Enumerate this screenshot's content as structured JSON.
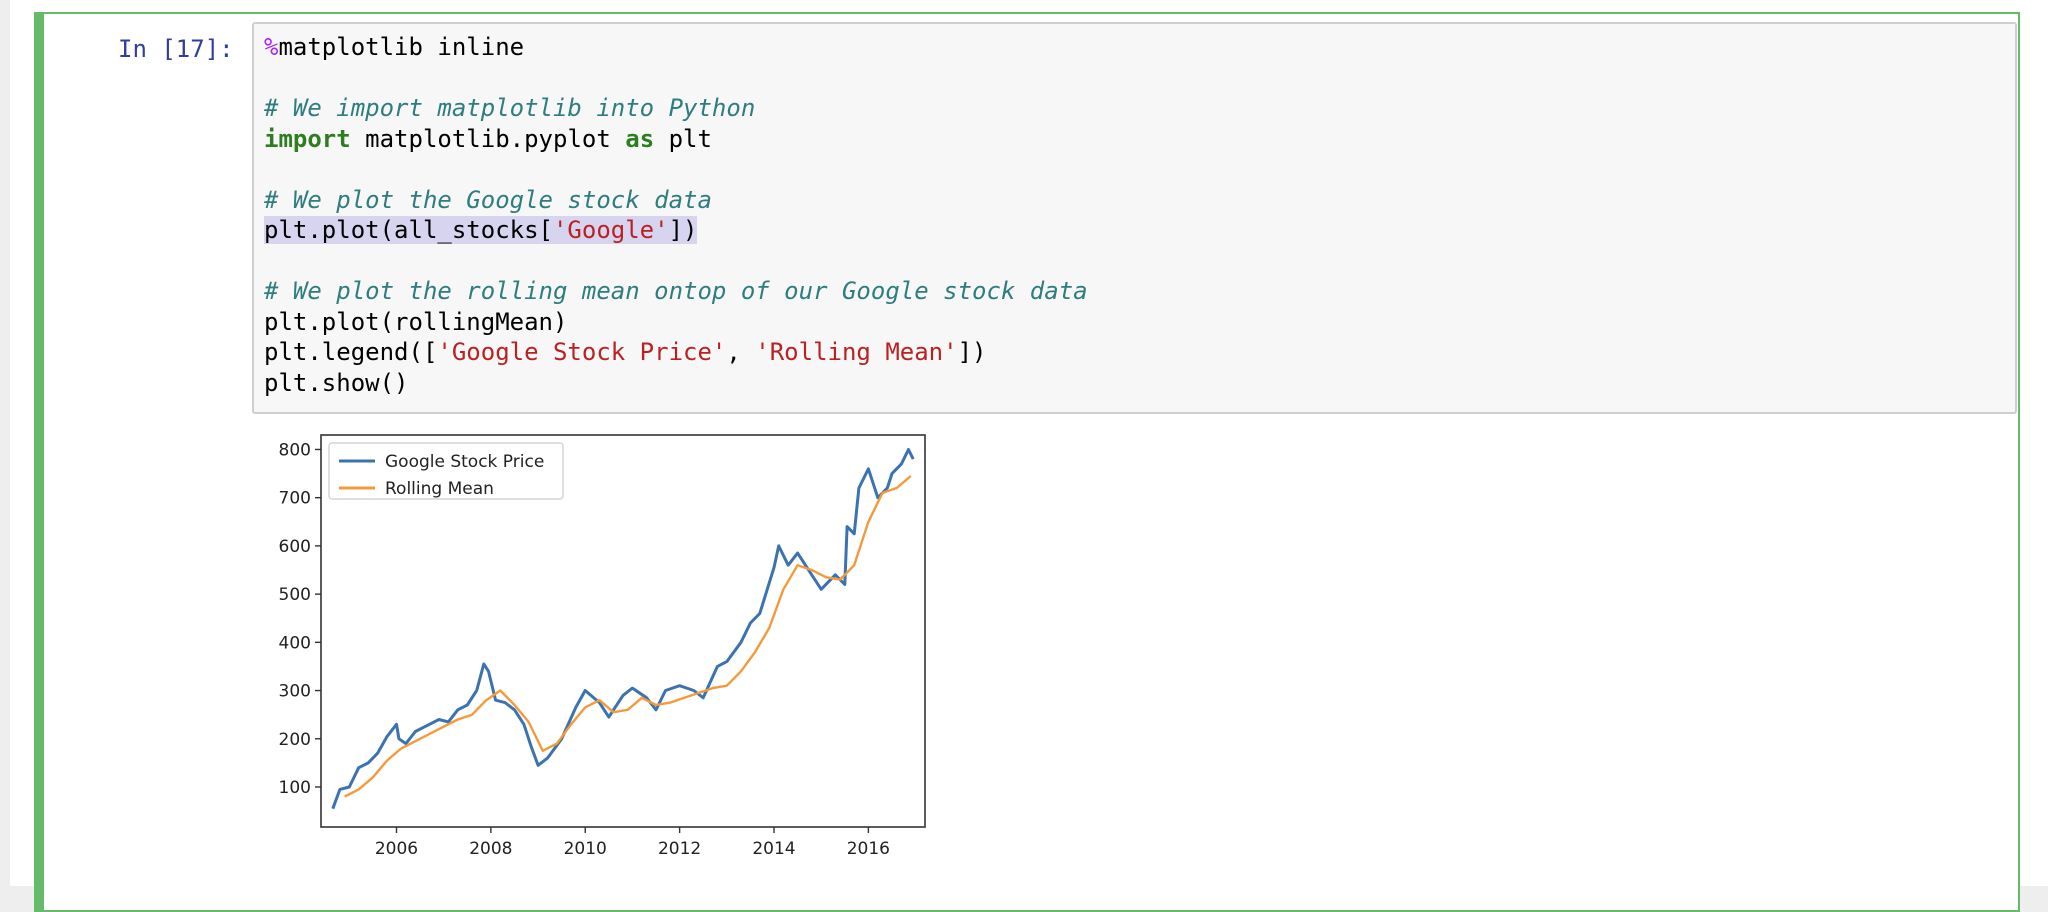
{
  "cell": {
    "prompt": "In [17]:",
    "code_lines": [
      [
        {
          "cls": "tok-magic",
          "text": "%"
        },
        {
          "cls": "",
          "text": "matplotlib inline"
        }
      ],
      [
        {
          "cls": "",
          "text": ""
        }
      ],
      [
        {
          "cls": "tok-comment",
          "text": "# We import matplotlib into Python"
        }
      ],
      [
        {
          "cls": "tok-keyword",
          "text": "import"
        },
        {
          "cls": "",
          "text": " matplotlib.pyplot "
        },
        {
          "cls": "tok-keyword",
          "text": "as"
        },
        {
          "cls": "",
          "text": " plt"
        }
      ],
      [
        {
          "cls": "",
          "text": ""
        }
      ],
      [
        {
          "cls": "tok-comment",
          "text": "# We plot the Google stock data"
        }
      ],
      [
        {
          "cls": "hl",
          "text": "plt.plot(all_stocks["
        },
        {
          "cls": "hl tok-string",
          "text": "'Google'"
        },
        {
          "cls": "hl",
          "text": "])"
        }
      ],
      [
        {
          "cls": "",
          "text": ""
        }
      ],
      [
        {
          "cls": "tok-comment",
          "text": "# We plot the rolling mean ontop of our Google stock data"
        }
      ],
      [
        {
          "cls": "",
          "text": "plt.plot(rollingMean)"
        }
      ],
      [
        {
          "cls": "",
          "text": "plt.legend(["
        },
        {
          "cls": "tok-string",
          "text": "'Google Stock Price'"
        },
        {
          "cls": "",
          "text": ", "
        },
        {
          "cls": "tok-string",
          "text": "'Rolling Mean'"
        },
        {
          "cls": "",
          "text": "])"
        }
      ],
      [
        {
          "cls": "",
          "text": "plt.show()"
        }
      ]
    ]
  },
  "colors": {
    "cell_border": "#66bb6a",
    "prompt": "#303f9f",
    "series_price": "#3b73b0",
    "series_mean": "#f59a3b"
  },
  "chart_data": {
    "type": "line",
    "title": "",
    "xlabel": "",
    "ylabel": "",
    "xlim": [
      2004.4,
      2017.2
    ],
    "ylim": [
      17,
      830
    ],
    "x_ticks": [
      2006,
      2008,
      2010,
      2012,
      2014,
      2016
    ],
    "y_ticks": [
      100,
      200,
      300,
      400,
      500,
      600,
      700,
      800
    ],
    "grid": false,
    "legend_position": "top-left",
    "series": [
      {
        "name": "Google Stock Price",
        "color": "#3b73b0",
        "x": [
          2004.65,
          2004.8,
          2005.0,
          2005.2,
          2005.4,
          2005.6,
          2005.8,
          2006.0,
          2006.05,
          2006.2,
          2006.4,
          2006.6,
          2006.9,
          2007.1,
          2007.3,
          2007.5,
          2007.7,
          2007.85,
          2007.95,
          2008.1,
          2008.3,
          2008.5,
          2008.7,
          2008.85,
          2009.0,
          2009.2,
          2009.5,
          2009.8,
          2010.0,
          2010.3,
          2010.5,
          2010.8,
          2011.0,
          2011.3,
          2011.5,
          2011.7,
          2012.0,
          2012.3,
          2012.5,
          2012.8,
          2013.0,
          2013.3,
          2013.5,
          2013.7,
          2014.0,
          2014.1,
          2014.3,
          2014.5,
          2014.8,
          2015.0,
          2015.3,
          2015.5,
          2015.55,
          2015.7,
          2015.8,
          2016.0,
          2016.2,
          2016.4,
          2016.5,
          2016.7,
          2016.85,
          2016.95
        ],
        "y": [
          55,
          95,
          100,
          140,
          150,
          170,
          205,
          230,
          200,
          190,
          215,
          225,
          240,
          235,
          260,
          270,
          300,
          355,
          340,
          280,
          275,
          260,
          230,
          185,
          145,
          160,
          200,
          265,
          300,
          275,
          245,
          290,
          305,
          285,
          260,
          300,
          310,
          300,
          285,
          350,
          360,
          400,
          440,
          460,
          555,
          600,
          560,
          585,
          540,
          510,
          540,
          520,
          640,
          625,
          720,
          760,
          700,
          720,
          750,
          770,
          800,
          780
        ]
      },
      {
        "name": "Rolling Mean",
        "color": "#f59a3b",
        "x": [
          2004.9,
          2005.2,
          2005.5,
          2005.8,
          2006.1,
          2006.4,
          2006.7,
          2007.0,
          2007.3,
          2007.6,
          2007.9,
          2008.2,
          2008.5,
          2008.8,
          2009.1,
          2009.4,
          2009.7,
          2010.0,
          2010.3,
          2010.6,
          2010.9,
          2011.2,
          2011.5,
          2011.8,
          2012.1,
          2012.4,
          2012.7,
          2013.0,
          2013.3,
          2013.6,
          2013.9,
          2014.2,
          2014.5,
          2014.8,
          2015.1,
          2015.4,
          2015.7,
          2016.0,
          2016.3,
          2016.6,
          2016.9
        ],
        "y": [
          80,
          95,
          120,
          155,
          180,
          195,
          210,
          225,
          240,
          250,
          280,
          300,
          270,
          235,
          175,
          190,
          230,
          265,
          280,
          255,
          260,
          285,
          270,
          275,
          285,
          295,
          305,
          310,
          340,
          380,
          430,
          510,
          560,
          550,
          535,
          530,
          560,
          650,
          710,
          720,
          745
        ]
      }
    ]
  }
}
